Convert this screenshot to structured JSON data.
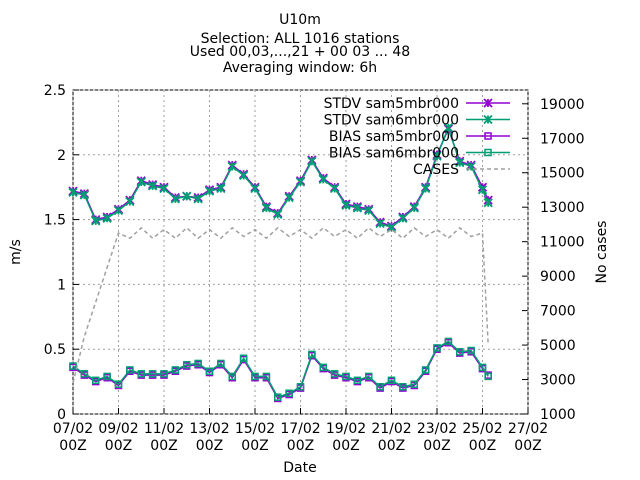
{
  "chart_data": {
    "type": "line",
    "title": "U10m",
    "subtitle_lines": [
      "Selection: ALL   1016 stations",
      "Used 00,03,...,21 + 00 03 ... 48",
      "Averaging window:  6h"
    ],
    "xlabel": "Date",
    "ylabel": "m/s",
    "y2label": "No cases",
    "xlim": [
      7,
      27
    ],
    "xticks": [
      {
        "value": 7,
        "label": "07/02\n00Z"
      },
      {
        "value": 9,
        "label": "09/02\n00Z"
      },
      {
        "value": 11,
        "label": "11/02\n00Z"
      },
      {
        "value": 13,
        "label": "13/02\n00Z"
      },
      {
        "value": 15,
        "label": "15/02\n00Z"
      },
      {
        "value": 17,
        "label": "17/02\n00Z"
      },
      {
        "value": 19,
        "label": "19/02\n00Z"
      },
      {
        "value": 21,
        "label": "21/02\n00Z"
      },
      {
        "value": 23,
        "label": "23/02\n00Z"
      },
      {
        "value": 25,
        "label": "25/02\n00Z"
      },
      {
        "value": 27,
        "label": "27/02\n00Z"
      }
    ],
    "ylim": [
      0,
      2.5
    ],
    "yticks": [
      0,
      0.5,
      1,
      1.5,
      2,
      2.5
    ],
    "y2lim": [
      1000,
      19800
    ],
    "y2ticks": [
      1000,
      3000,
      5000,
      7000,
      9000,
      11000,
      13000,
      15000,
      17000,
      19000
    ],
    "grid": true,
    "series": [
      {
        "name": "STDV sam5mbr000",
        "color": "#9400d3",
        "marker": "star",
        "x": [
          7,
          7.5,
          8,
          8.5,
          9,
          9.5,
          10,
          10.5,
          11,
          11.5,
          12,
          12.5,
          13,
          13.5,
          14,
          14.5,
          15,
          15.5,
          16,
          16.5,
          17,
          17.5,
          18,
          18.5,
          19,
          19.5,
          20,
          20.5,
          21,
          21.5,
          22,
          22.5,
          23,
          23.5,
          24,
          24.5,
          25,
          25.25
        ],
        "values": [
          1.72,
          1.7,
          1.5,
          1.52,
          1.58,
          1.65,
          1.8,
          1.77,
          1.75,
          1.67,
          1.68,
          1.67,
          1.73,
          1.75,
          1.92,
          1.85,
          1.75,
          1.6,
          1.55,
          1.68,
          1.8,
          1.96,
          1.82,
          1.75,
          1.62,
          1.6,
          1.58,
          1.48,
          1.45,
          1.52,
          1.6,
          1.75,
          2.0,
          2.2,
          1.95,
          1.92,
          1.75,
          1.65
        ]
      },
      {
        "name": "STDV sam6mbr000",
        "color": "#009e73",
        "marker": "star",
        "x": [
          7,
          7.5,
          8,
          8.5,
          9,
          9.5,
          10,
          10.5,
          11,
          11.5,
          12,
          12.5,
          13,
          13.5,
          14,
          14.5,
          15,
          15.5,
          16,
          16.5,
          17,
          17.5,
          18,
          18.5,
          19,
          19.5,
          20,
          20.5,
          21,
          21.5,
          22,
          22.5,
          23,
          23.5,
          24,
          24.5,
          25,
          25.25
        ],
        "values": [
          1.71,
          1.69,
          1.49,
          1.51,
          1.57,
          1.64,
          1.79,
          1.76,
          1.74,
          1.66,
          1.68,
          1.66,
          1.72,
          1.74,
          1.91,
          1.84,
          1.74,
          1.59,
          1.54,
          1.67,
          1.79,
          1.95,
          1.81,
          1.74,
          1.61,
          1.59,
          1.57,
          1.47,
          1.44,
          1.51,
          1.59,
          1.74,
          1.99,
          2.21,
          1.94,
          1.91,
          1.73,
          1.63
        ]
      },
      {
        "name": "BIAS sam5mbr000",
        "color": "#9400d3",
        "marker": "square",
        "x": [
          7,
          7.5,
          8,
          8.5,
          9,
          9.5,
          10,
          10.5,
          11,
          11.5,
          12,
          12.5,
          13,
          13.5,
          14,
          14.5,
          15,
          15.5,
          16,
          16.5,
          17,
          17.5,
          18,
          18.5,
          19,
          19.5,
          20,
          20.5,
          21,
          21.5,
          22,
          22.5,
          23,
          23.5,
          24,
          24.5,
          25,
          25.25
        ],
        "values": [
          0.36,
          0.3,
          0.25,
          0.28,
          0.22,
          0.33,
          0.3,
          0.3,
          0.3,
          0.33,
          0.37,
          0.38,
          0.32,
          0.38,
          0.28,
          0.42,
          0.28,
          0.28,
          0.12,
          0.15,
          0.2,
          0.45,
          0.35,
          0.3,
          0.28,
          0.25,
          0.28,
          0.2,
          0.25,
          0.2,
          0.22,
          0.33,
          0.5,
          0.55,
          0.47,
          0.48,
          0.35,
          0.3
        ]
      },
      {
        "name": "BIAS sam6mbr000",
        "color": "#009e73",
        "marker": "square",
        "x": [
          7,
          7.5,
          8,
          8.5,
          9,
          9.5,
          10,
          10.5,
          11,
          11.5,
          12,
          12.5,
          13,
          13.5,
          14,
          14.5,
          15,
          15.5,
          16,
          16.5,
          17,
          17.5,
          18,
          18.5,
          19,
          19.5,
          20,
          20.5,
          21,
          21.5,
          22,
          22.5,
          23,
          23.5,
          24,
          24.5,
          25,
          25.25
        ],
        "values": [
          0.37,
          0.31,
          0.26,
          0.29,
          0.23,
          0.34,
          0.31,
          0.31,
          0.31,
          0.34,
          0.38,
          0.39,
          0.33,
          0.39,
          0.29,
          0.43,
          0.29,
          0.29,
          0.13,
          0.16,
          0.21,
          0.46,
          0.36,
          0.31,
          0.29,
          0.26,
          0.29,
          0.21,
          0.26,
          0.21,
          0.23,
          0.34,
          0.51,
          0.56,
          0.48,
          0.49,
          0.36,
          0.29
        ]
      },
      {
        "name": "CASES",
        "color": "#a0a0a0",
        "dashed": true,
        "axis": "y2",
        "x": [
          7,
          7.5,
          8,
          8.5,
          9,
          9.5,
          10,
          10.5,
          11,
          11.5,
          12,
          12.5,
          13,
          13.5,
          14,
          14.5,
          15,
          15.5,
          16,
          16.5,
          17,
          17.5,
          18,
          18.5,
          19,
          19.5,
          20,
          20.5,
          21,
          21.5,
          22,
          22.5,
          23,
          23.5,
          24,
          24.5,
          25,
          25.25
        ],
        "values": [
          2800,
          5500,
          7500,
          9500,
          11500,
          11200,
          11800,
          11200,
          11700,
          11200,
          11800,
          11200,
          11700,
          11200,
          11800,
          11300,
          11700,
          11200,
          11800,
          11300,
          11700,
          11200,
          11800,
          11300,
          11700,
          11200,
          11800,
          11300,
          11700,
          11200,
          11800,
          11300,
          11700,
          11200,
          11800,
          11300,
          11500,
          5000
        ]
      }
    ]
  }
}
